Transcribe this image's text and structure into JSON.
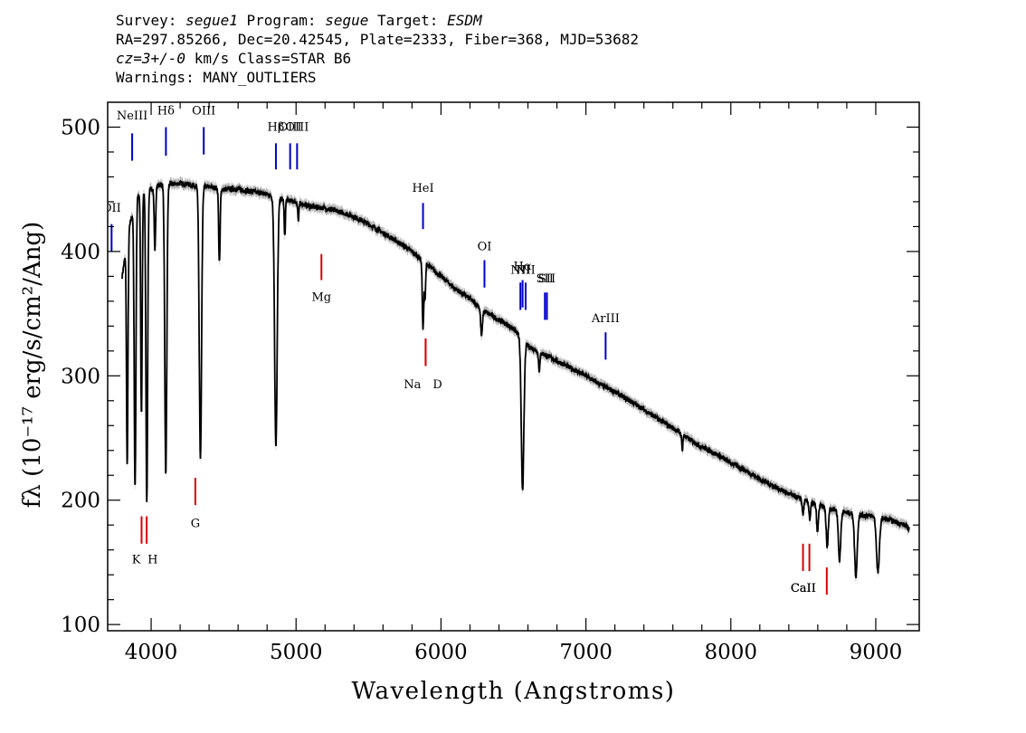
{
  "header": {
    "line1": {
      "survey_label": "Survey: ",
      "survey": "segue1",
      "program_label": " Program: ",
      "program": "segue",
      "target_label": " Target: ",
      "target": "ESDM"
    },
    "line2": "RA=297.85266, Dec=20.42545, Plate=2333, Fiber=368, MJD=53682",
    "line3": {
      "cz": "cz=3+/-0",
      "rest": " km/s Class=STAR B6"
    },
    "line4": "Warnings: MANY_OUTLIERS"
  },
  "chart_data": {
    "type": "line",
    "xlabel": "Wavelength (Angstroms)",
    "ylabel": "fλ (10⁻¹⁷ erg/s/cm²/Ang)",
    "xlim": [
      3700,
      9300
    ],
    "ylim": [
      95,
      520
    ],
    "x_ticks": [
      4000,
      5000,
      6000,
      7000,
      8000,
      9000
    ],
    "y_ticks": [
      100,
      200,
      300,
      400,
      500
    ],
    "grid": false,
    "colors": {
      "spectrum": "#000000",
      "error_band": "#b4b4b4",
      "emission": "#0000cc",
      "absorption": "#dd0000"
    },
    "continuum": [
      [
        3800,
        380
      ],
      [
        3850,
        420
      ],
      [
        3900,
        445
      ],
      [
        3950,
        448
      ],
      [
        4000,
        450
      ],
      [
        4050,
        453
      ],
      [
        4100,
        455
      ],
      [
        4150,
        454
      ],
      [
        4200,
        455
      ],
      [
        4300,
        453
      ],
      [
        4400,
        452
      ],
      [
        4500,
        450
      ],
      [
        4600,
        450
      ],
      [
        4700,
        448
      ],
      [
        4800,
        446
      ],
      [
        4900,
        442
      ],
      [
        5000,
        440
      ],
      [
        5100,
        436
      ],
      [
        5200,
        435
      ],
      [
        5300,
        432
      ],
      [
        5400,
        428
      ],
      [
        5500,
        422
      ],
      [
        5600,
        415
      ],
      [
        5700,
        408
      ],
      [
        5800,
        400
      ],
      [
        5900,
        390
      ],
      [
        6000,
        380
      ],
      [
        6100,
        370
      ],
      [
        6200,
        362
      ],
      [
        6300,
        352
      ],
      [
        6400,
        345
      ],
      [
        6500,
        338
      ],
      [
        6600,
        324
      ],
      [
        6700,
        318
      ],
      [
        6800,
        312
      ],
      [
        6900,
        306
      ],
      [
        7000,
        300
      ],
      [
        7100,
        293
      ],
      [
        7200,
        287
      ],
      [
        7300,
        280
      ],
      [
        7400,
        273
      ],
      [
        7500,
        265
      ],
      [
        7600,
        258
      ],
      [
        7700,
        250
      ],
      [
        7800,
        243
      ],
      [
        7900,
        237
      ],
      [
        8000,
        230
      ],
      [
        8100,
        224
      ],
      [
        8200,
        217
      ],
      [
        8300,
        211
      ],
      [
        8400,
        205
      ],
      [
        8500,
        200
      ],
      [
        8600,
        196
      ],
      [
        8700,
        193
      ],
      [
        8800,
        190
      ],
      [
        8900,
        188
      ],
      [
        9000,
        187
      ],
      [
        9100,
        184
      ],
      [
        9200,
        180
      ],
      [
        9230,
        177
      ]
    ],
    "absorption_features": [
      {
        "center": 3835,
        "depth": 180,
        "width": 5
      },
      {
        "center": 3889,
        "depth": 230,
        "width": 6
      },
      {
        "center": 3933,
        "depth": 180,
        "width": 5
      },
      {
        "center": 3970,
        "depth": 250,
        "width": 6
      },
      {
        "center": 4026,
        "depth": 50,
        "width": 5
      },
      {
        "center": 4101,
        "depth": 235,
        "width": 7
      },
      {
        "center": 4340,
        "depth": 220,
        "width": 8
      },
      {
        "center": 4471,
        "depth": 60,
        "width": 5
      },
      {
        "center": 4861,
        "depth": 200,
        "width": 9
      },
      {
        "center": 4922,
        "depth": 30,
        "width": 4
      },
      {
        "center": 5016,
        "depth": 15,
        "width": 4
      },
      {
        "center": 5876,
        "depth": 55,
        "width": 5
      },
      {
        "center": 5890,
        "depth": 30,
        "width": 4
      },
      {
        "center": 6280,
        "depth": 22,
        "width": 6
      },
      {
        "center": 6563,
        "depth": 120,
        "width": 9
      },
      {
        "center": 6678,
        "depth": 15,
        "width": 5
      },
      {
        "center": 7665,
        "depth": 12,
        "width": 4
      },
      {
        "center": 8498,
        "depth": 12,
        "width": 5
      },
      {
        "center": 8545,
        "depth": 14,
        "width": 5
      },
      {
        "center": 8598,
        "depth": 22,
        "width": 6
      },
      {
        "center": 8665,
        "depth": 32,
        "width": 7
      },
      {
        "center": 8750,
        "depth": 40,
        "width": 8
      },
      {
        "center": 8863,
        "depth": 50,
        "width": 9
      },
      {
        "center": 9015,
        "depth": 45,
        "width": 10
      }
    ],
    "emission_lines": [
      {
        "label": "NeIII",
        "x": 3869,
        "y_bottom": 473,
        "y_top": 495,
        "label_y": 506
      },
      {
        "label": "Hδ",
        "x": 4102,
        "y_bottom": 477,
        "y_top": 500,
        "label_y": 510
      },
      {
        "label": "OIII",
        "x": 4363,
        "y_bottom": 478,
        "y_top": 500,
        "label_y": 510
      },
      {
        "label": "Hβ",
        "x": 4861,
        "y_bottom": 466,
        "y_top": 487,
        "label_y": 497
      },
      {
        "label": "OIII",
        "x": 4959,
        "y_bottom": 466,
        "y_top": 487,
        "label_y": 497
      },
      {
        "label": "OIII",
        "x": 5007,
        "y_bottom": 466,
        "y_top": 487,
        "label_y": 497
      },
      {
        "label": "OII",
        "x": 3727,
        "y_bottom": 400,
        "y_top": 422,
        "label_y": 432
      },
      {
        "label": "HeI",
        "x": 5876,
        "y_bottom": 418,
        "y_top": 439,
        "label_y": 448
      },
      {
        "label": "OI",
        "x": 6300,
        "y_bottom": 371,
        "y_top": 393,
        "label_y": 401
      },
      {
        "label": "NII",
        "x": 6548,
        "y_bottom": 353,
        "y_top": 375,
        "label_y": 382
      },
      {
        "label": "Hα",
        "x": 6563,
        "y_bottom": 355,
        "y_top": 377,
        "label_y": 385
      },
      {
        "label": "NII",
        "x": 6584,
        "y_bottom": 353,
        "y_top": 375,
        "label_y": 382
      },
      {
        "label": "SII",
        "x": 6717,
        "y_bottom": 345,
        "y_top": 367,
        "label_y": 375
      },
      {
        "label": "SII",
        "x": 6731,
        "y_bottom": 345,
        "y_top": 367,
        "label_y": 375
      },
      {
        "label": "ArIII",
        "x": 7136,
        "y_bottom": 313,
        "y_top": 335,
        "label_y": 343
      }
    ],
    "absorption_lines": [
      {
        "label": "K",
        "x": 3934,
        "y_bottom": 165,
        "y_top": 187,
        "label_y": 155
      },
      {
        "label": "H",
        "x": 3969,
        "y_bottom": 165,
        "y_top": 187,
        "label_y": 155
      },
      {
        "label": "G",
        "x": 4305,
        "y_bottom": 196,
        "y_top": 218,
        "label_y": 184
      },
      {
        "label": "Mg",
        "x": 5175,
        "y_bottom": 377,
        "y_top": 398,
        "label_y": 366
      },
      {
        "label": "Na",
        "x": 5894,
        "y_bottom": 308,
        "y_top": 330,
        "label_y": 296
      },
      {
        "label": "D",
        "x": 5894,
        "y_bottom": 308,
        "y_top": 330,
        "label_y": 296
      },
      {
        "label": "CaII",
        "x": 8498,
        "y_bottom": 143,
        "y_top": 165,
        "label_y": 132
      },
      {
        "label": "CaII",
        "x": 8542,
        "y_bottom": 143,
        "y_top": 165,
        "label_y": 132
      },
      {
        "label": "CaII",
        "x": 8662,
        "y_bottom": 124,
        "y_top": 146,
        "label_y": 132
      }
    ]
  }
}
